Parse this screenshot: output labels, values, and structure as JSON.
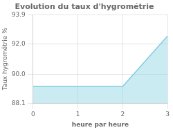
{
  "chart_data": {
    "type": "area",
    "title": "Evolution du taux d'hygrométrie",
    "xlabel": "heure par heure",
    "ylabel": "Taux hygrométrie %",
    "x": [
      0,
      2,
      3
    ],
    "values": [
      89.2,
      89.2,
      92.5
    ],
    "xlim": [
      0,
      3
    ],
    "ylim": [
      88.1,
      93.9
    ],
    "xticks": [
      0,
      1,
      2,
      3
    ],
    "yticks": [
      88.1,
      {
        "value": 90,
        "label": "90.0"
      },
      {
        "value": 92,
        "label": "92.0"
      },
      93.9
    ],
    "color": "#7dcde0",
    "grid": true
  }
}
